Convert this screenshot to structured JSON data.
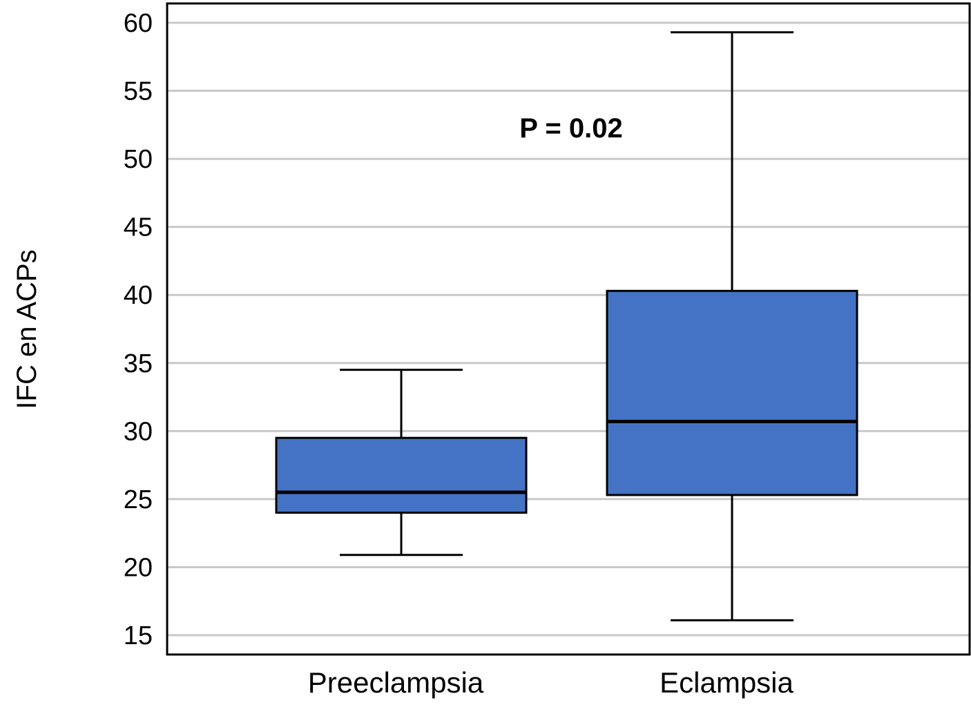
{
  "chart_data": {
    "type": "boxplot",
    "title": "",
    "xlabel": "",
    "ylabel": "IFC en ACPs",
    "ylim": [
      13.6,
      61.5
    ],
    "yticks": [
      15,
      20,
      25,
      30,
      35,
      40,
      45,
      50,
      55,
      60
    ],
    "ytick_labels": [
      "15",
      "20",
      "25",
      "30",
      "35",
      "40",
      "45",
      "50",
      "55",
      "60"
    ],
    "grid": true,
    "categories": [
      "Preeclampsia",
      "Eclampsia"
    ],
    "series": [
      {
        "name": "Preeclampsia",
        "whisker_low": 20.9,
        "q1": 24.0,
        "median": 25.5,
        "q3": 29.5,
        "whisker_high": 34.5
      },
      {
        "name": "Eclampsia",
        "whisker_low": 16.1,
        "q1": 25.3,
        "median": 30.7,
        "q3": 40.3,
        "whisker_high": 59.3
      }
    ],
    "annotations": [
      {
        "text": "P = 0.02"
      }
    ],
    "colors": {
      "box_fill": "#4472C4",
      "grid": "#c8c8c8",
      "line": "#000000"
    }
  }
}
